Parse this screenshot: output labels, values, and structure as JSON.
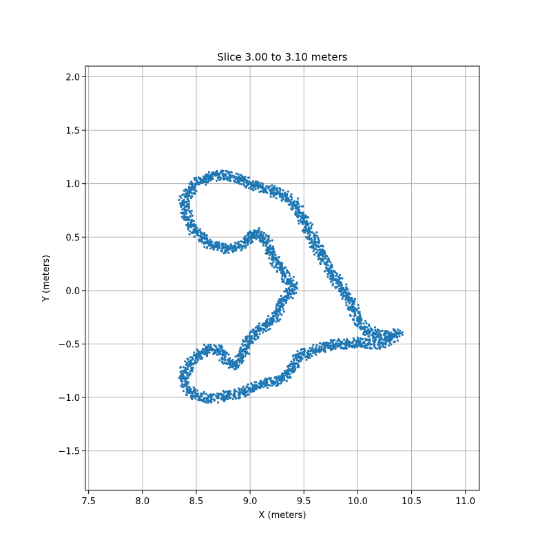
{
  "chart_data": {
    "type": "scatter",
    "title": "Slice 3.00 to 3.10 meters",
    "xlabel": "X (meters)",
    "ylabel": "Y (meters)",
    "xlim": [
      7.47,
      11.13
    ],
    "ylim": [
      -1.87,
      2.1
    ],
    "grid": true,
    "marker_color": "#1f77b4",
    "x_ticks": [
      7.5,
      8.0,
      8.5,
      9.0,
      9.5,
      10.0,
      10.5,
      11.0
    ],
    "x_tick_labels": [
      "7.5",
      "8.0",
      "8.5",
      "9.0",
      "9.5",
      "10.0",
      "10.5",
      "11.0"
    ],
    "y_ticks": [
      -1.5,
      -1.0,
      -0.5,
      0.0,
      0.5,
      1.0,
      1.5,
      2.0
    ],
    "y_tick_labels": [
      "−1.5",
      "−1.0",
      "−0.5",
      "0.0",
      "0.5",
      "1.0",
      "1.5",
      "2.0"
    ],
    "series": [
      {
        "points_x": [
          8.62,
          8.68,
          8.75,
          8.82,
          8.9,
          8.98,
          9.05,
          9.12,
          9.2,
          9.28,
          9.35,
          9.4,
          9.45,
          9.5,
          9.55,
          9.6,
          9.65,
          9.7,
          9.75,
          9.8,
          9.85,
          9.9,
          9.95,
          10.0,
          10.05,
          10.1,
          10.15,
          10.2,
          10.3,
          10.38,
          10.3,
          10.2,
          10.1,
          10.0,
          9.9,
          9.8,
          9.7,
          9.6,
          9.5,
          9.45,
          9.4,
          9.35,
          9.3,
          9.2,
          9.1,
          9.0,
          8.95,
          8.9,
          8.85,
          8.8,
          8.75,
          8.7,
          8.6,
          8.5,
          8.45,
          8.4,
          8.38,
          8.4,
          8.45,
          8.5,
          8.55,
          8.6,
          8.65,
          8.7,
          8.75,
          8.8,
          8.85,
          8.9,
          8.95,
          9.0,
          9.05,
          9.1,
          9.15,
          9.2,
          9.25,
          9.28,
          9.3,
          9.35,
          9.38,
          9.4,
          9.35,
          9.32,
          9.28,
          9.25,
          9.22,
          9.2,
          9.18,
          9.15,
          9.12,
          9.1,
          9.06,
          9.02,
          8.98,
          8.95,
          8.9,
          8.85,
          8.8,
          8.75,
          8.7,
          8.65,
          8.6,
          8.55,
          8.5,
          8.45,
          8.42,
          8.4,
          8.38,
          8.4,
          8.45,
          8.5,
          8.55,
          8.58
        ],
        "points_y": [
          1.06,
          1.08,
          1.08,
          1.07,
          1.05,
          1.0,
          0.98,
          0.96,
          0.94,
          0.9,
          0.86,
          0.82,
          0.75,
          0.65,
          0.55,
          0.45,
          0.35,
          0.25,
          0.18,
          0.1,
          0.02,
          -0.05,
          -0.15,
          -0.28,
          -0.35,
          -0.38,
          -0.4,
          -0.42,
          -0.42,
          -0.4,
          -0.46,
          -0.5,
          -0.5,
          -0.48,
          -0.5,
          -0.5,
          -0.52,
          -0.56,
          -0.6,
          -0.62,
          -0.72,
          -0.78,
          -0.82,
          -0.85,
          -0.88,
          -0.92,
          -0.95,
          -0.97,
          -0.98,
          -0.98,
          -0.99,
          -1.0,
          -1.01,
          -0.98,
          -0.95,
          -0.88,
          -0.82,
          -0.75,
          -0.68,
          -0.62,
          -0.58,
          -0.55,
          -0.55,
          -0.55,
          -0.6,
          -0.65,
          -0.7,
          -0.65,
          -0.55,
          -0.45,
          -0.4,
          -0.36,
          -0.32,
          -0.3,
          -0.22,
          -0.15,
          -0.08,
          -0.05,
          0.0,
          0.05,
          0.1,
          0.15,
          0.2,
          0.25,
          0.3,
          0.35,
          0.4,
          0.45,
          0.5,
          0.52,
          0.55,
          0.52,
          0.48,
          0.45,
          0.42,
          0.4,
          0.39,
          0.4,
          0.41,
          0.42,
          0.45,
          0.5,
          0.55,
          0.6,
          0.68,
          0.75,
          0.82,
          0.88,
          0.95,
          1.0,
          1.03,
          1.05
        ]
      }
    ]
  }
}
